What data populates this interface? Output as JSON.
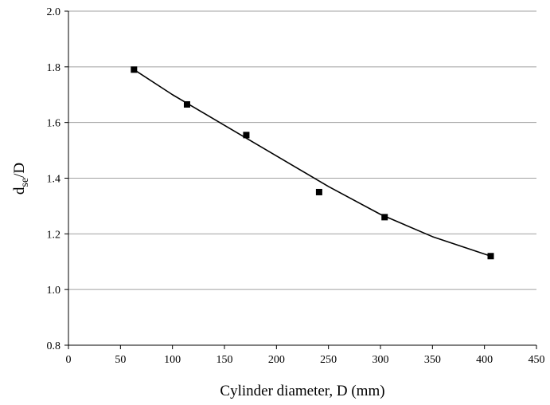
{
  "chart_data": {
    "type": "scatter",
    "xlabel": "Cylinder diameter, D (mm)",
    "ylabel": [
      "d",
      "se",
      "/D"
    ],
    "x": [
      63,
      114,
      171,
      241,
      304,
      406
    ],
    "values": [
      1.79,
      1.665,
      1.555,
      1.35,
      1.26,
      1.12
    ],
    "color": "#000000",
    "trend": {
      "x": [
        63,
        100,
        150,
        200,
        250,
        300,
        350,
        406
      ],
      "values": [
        1.79,
        1.7,
        1.59,
        1.48,
        1.37,
        1.27,
        1.19,
        1.12
      ],
      "color": "#000000"
    },
    "xlim": [
      0,
      450
    ],
    "xticks": [
      0,
      50,
      100,
      150,
      200,
      250,
      300,
      350,
      400,
      450
    ],
    "ylim": [
      0.8,
      2.0
    ],
    "yticks": [
      0.8,
      {
        "value": 1,
        "label": "1.0"
      },
      1.2,
      1.4,
      1.6,
      1.8,
      {
        "value": 2,
        "label": "2.0"
      }
    ],
    "grid": true
  }
}
